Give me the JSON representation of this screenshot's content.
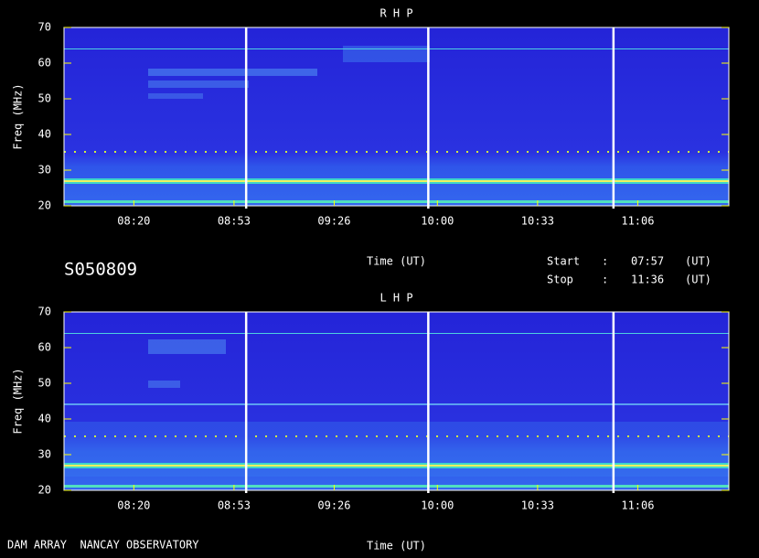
{
  "chart_data": [
    {
      "type": "spectrogram",
      "title": "R H P",
      "x_label": "Time (UT)",
      "y_label": "Freq (MHz)",
      "xlim": [
        "07:57",
        "11:36"
      ],
      "xticks": [
        "08:20",
        "08:53",
        "09:26",
        "10:00",
        "10:33",
        "11:06"
      ],
      "ylim": [
        20,
        70
      ],
      "yticks": [
        20,
        30,
        40,
        50,
        60,
        70
      ],
      "markers": [
        "08:57",
        "09:57",
        "10:58"
      ]
    },
    {
      "type": "spectrogram",
      "title": "L H P",
      "x_label": "Time (UT)",
      "y_label": "Freq (MHz)",
      "xlim": [
        "07:57",
        "11:36"
      ],
      "xticks": [
        "08:20",
        "08:53",
        "09:26",
        "10:00",
        "10:33",
        "11:06"
      ],
      "ylim": [
        20,
        70
      ],
      "yticks": [
        20,
        30,
        40,
        50,
        60,
        70
      ],
      "markers": [
        "08:57",
        "09:57",
        "10:58"
      ]
    }
  ],
  "header": {
    "id": "S050809",
    "start_label": "Start",
    "start": "07:57",
    "stop_label": "Stop",
    "stop": "11:36",
    "separator": ":",
    "unit": "(UT)"
  },
  "footer": "DAM ARRAY  NANCAY OBSERVATORY"
}
